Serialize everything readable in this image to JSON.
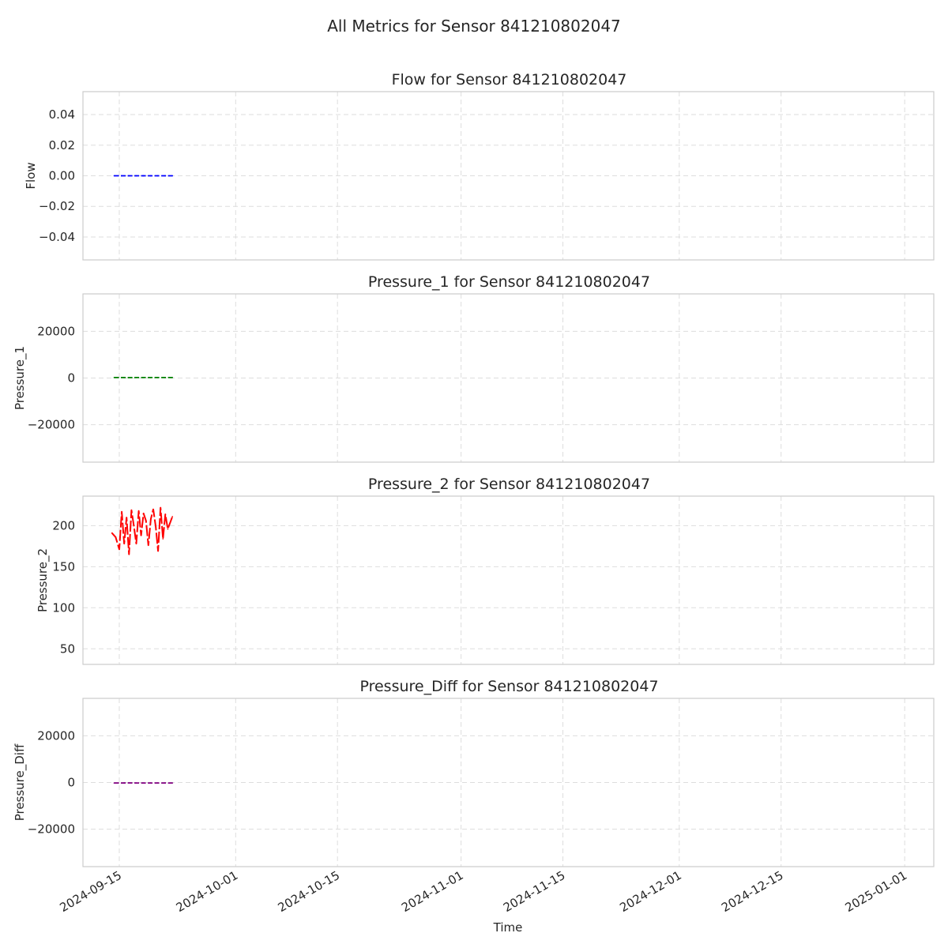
{
  "figure_title": "All Metrics for Sensor 841210802047",
  "chart_data": [
    {
      "type": "line",
      "title": "Flow for Sensor 841210802047",
      "xlabel": "",
      "ylabel": "Flow",
      "color": "#0000ff",
      "ylim": [
        -0.055,
        0.055
      ],
      "yticks": [
        -0.04,
        -0.02,
        0.0,
        0.02,
        0.04
      ],
      "ytick_labels": [
        "−0.04",
        "−0.02",
        "0.00",
        "0.02",
        "0.04"
      ],
      "x": [
        "2024-09-14",
        "2024-09-15",
        "2024-09-16",
        "2024-09-17",
        "2024-09-18",
        "2024-09-19",
        "2024-09-20",
        "2024-09-21",
        "2024-09-22"
      ],
      "y": [
        0,
        0,
        0,
        0,
        0,
        0,
        0,
        0,
        0
      ]
    },
    {
      "type": "line",
      "title": "Pressure_1 for Sensor 841210802047",
      "xlabel": "",
      "ylabel": "Pressure_1",
      "color": "#008000",
      "ylim": [
        -36000,
        36000
      ],
      "yticks": [
        -20000,
        0,
        20000
      ],
      "ytick_labels": [
        "−20000",
        "0",
        "20000"
      ],
      "x": [
        "2024-09-14",
        "2024-09-15",
        "2024-09-16",
        "2024-09-17",
        "2024-09-18",
        "2024-09-19",
        "2024-09-20",
        "2024-09-21",
        "2024-09-22"
      ],
      "y": [
        190,
        195,
        185,
        200,
        192,
        188,
        205,
        190,
        196
      ]
    },
    {
      "type": "line",
      "title": "Pressure_2 for Sensor 841210802047",
      "xlabel": "",
      "ylabel": "Pressure_2",
      "color": "#ff0000",
      "ylim": [
        31,
        236
      ],
      "yticks": [
        50,
        100,
        150,
        200
      ],
      "ytick_labels": [
        "50",
        "100",
        "150",
        "200"
      ],
      "x": [
        "2024-09-14",
        "2024-09-14",
        "2024-09-15",
        "2024-09-15",
        "2024-09-15",
        "2024-09-16",
        "2024-09-16",
        "2024-09-16",
        "2024-09-17",
        "2024-09-17",
        "2024-09-17",
        "2024-09-18",
        "2024-09-18",
        "2024-09-18",
        "2024-09-19",
        "2024-09-19",
        "2024-09-19",
        "2024-09-20",
        "2024-09-20",
        "2024-09-20",
        "2024-09-21",
        "2024-09-21",
        "2024-09-21",
        "2024-09-22"
      ],
      "y": [
        191,
        186,
        171,
        217,
        178,
        210,
        165,
        219,
        200,
        178,
        218,
        188,
        215,
        206,
        176,
        208,
        220,
        199,
        169,
        222,
        184,
        214,
        196,
        211
      ]
    },
    {
      "type": "line",
      "title": "Pressure_Diff for Sensor 841210802047",
      "xlabel": "Time",
      "ylabel": "Pressure_Diff",
      "color": "#800080",
      "ylim": [
        -36000,
        36000
      ],
      "yticks": [
        -20000,
        0,
        20000
      ],
      "ytick_labels": [
        "−20000",
        "0",
        "20000"
      ],
      "x": [
        "2024-09-14",
        "2024-09-15",
        "2024-09-16",
        "2024-09-17",
        "2024-09-18",
        "2024-09-19",
        "2024-09-20",
        "2024-09-21",
        "2024-09-22"
      ],
      "y": [
        -190,
        -195,
        -185,
        -200,
        -192,
        -188,
        -205,
        -190,
        -196
      ]
    }
  ],
  "x_axis": {
    "xlim": [
      "2024-09-10",
      "2025-01-05"
    ],
    "ticks": [
      "2024-09-15",
      "2024-10-01",
      "2024-10-15",
      "2024-11-01",
      "2024-11-15",
      "2024-12-01",
      "2024-12-15",
      "2025-01-01"
    ],
    "tick_labels": [
      "2024-09-15",
      "2024-10-01",
      "2024-10-15",
      "2024-11-01",
      "2024-11-15",
      "2024-12-01",
      "2024-12-15",
      "2025-01-01"
    ]
  },
  "grid": true
}
